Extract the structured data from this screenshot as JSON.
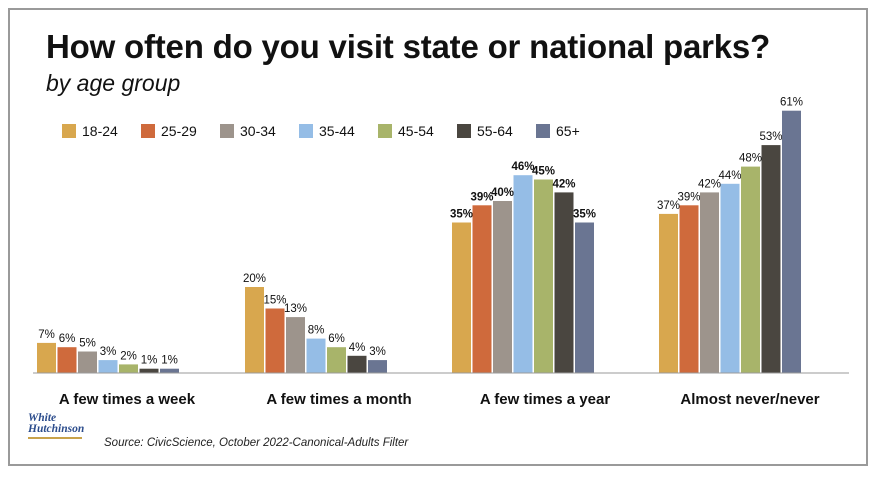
{
  "header": {
    "title": "How often do you visit state or national parks?",
    "subtitle": "by age group"
  },
  "logo": {
    "line1": "White",
    "line2": "Hutchinson"
  },
  "footer": {
    "source": "Source: CivicScience, October 2022-Canonical-Adults Filter"
  },
  "colors": {
    "18-24": "#d8a74e",
    "25-29": "#cf6a3c",
    "30-34": "#9d948c",
    "35-44": "#95bde6",
    "45-54": "#a8b46a",
    "55-64": "#4a4640",
    "65+": "#6a7592"
  },
  "chart_data": {
    "type": "bar",
    "title": "How often do you visit state or national parks?",
    "subtitle": "by age group",
    "categories": [
      "A few times a week",
      "A few times a month",
      "A few times a year",
      "Almost never/never"
    ],
    "series": [
      {
        "name": "18-24",
        "values": [
          7,
          20,
          35,
          37
        ]
      },
      {
        "name": "25-29",
        "values": [
          6,
          15,
          39,
          39
        ]
      },
      {
        "name": "30-34",
        "values": [
          5,
          13,
          40,
          42
        ]
      },
      {
        "name": "35-44",
        "values": [
          3,
          8,
          46,
          44
        ]
      },
      {
        "name": "45-54",
        "values": [
          2,
          6,
          45,
          48
        ]
      },
      {
        "name": "55-64",
        "values": [
          1,
          4,
          42,
          53
        ]
      },
      {
        "name": "65+",
        "values": [
          1,
          3,
          35,
          61
        ]
      }
    ],
    "value_suffix": "%",
    "bold_labels_category": "A few times a year",
    "ylim": [
      0,
      61
    ],
    "grid": false,
    "legend_position": "top-left"
  }
}
